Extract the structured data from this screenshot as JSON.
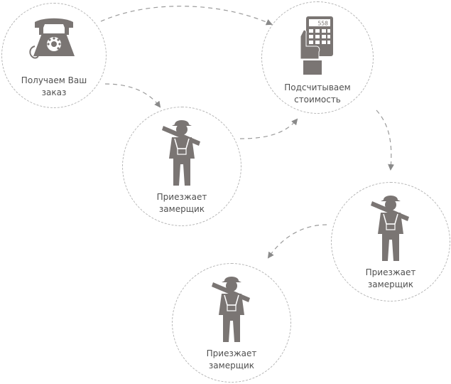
{
  "colors": {
    "icon": "#7a7573",
    "dash": "#b4b4b4",
    "arrow": "#8a8a8a",
    "text": "#505050"
  },
  "steps": [
    {
      "id": "order",
      "icon": "rotary-phone",
      "label": [
        "Получаем Ваш",
        "заказ"
      ]
    },
    {
      "id": "cost",
      "icon": "hand-calculator",
      "display": "558",
      "label": [
        "Подсчитываем",
        "стоимость"
      ]
    },
    {
      "id": "measure1",
      "icon": "worker",
      "label": [
        "Приезжает",
        "замерщик"
      ]
    },
    {
      "id": "measure2",
      "icon": "worker",
      "label": [
        "Приезжает",
        "замерщик"
      ]
    },
    {
      "id": "measure3",
      "icon": "worker",
      "label": [
        "Приезжает",
        "замерщик"
      ]
    }
  ]
}
